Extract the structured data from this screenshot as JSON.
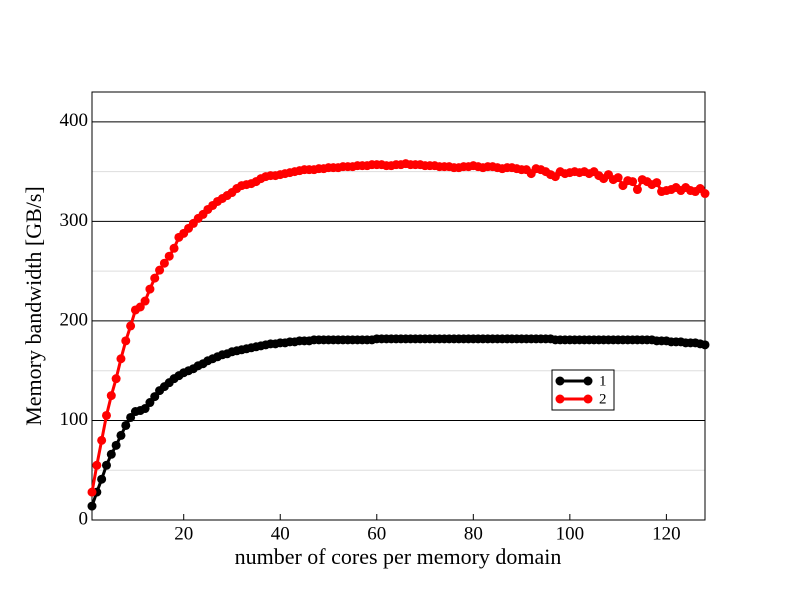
{
  "chart_data": {
    "type": "line",
    "xlabel": "number of cores per memory domain",
    "ylabel": "Memory bandwidth [GB/s]",
    "x": [
      1,
      2,
      3,
      4,
      5,
      6,
      7,
      8,
      9,
      10,
      11,
      12,
      13,
      14,
      15,
      16,
      17,
      18,
      19,
      20,
      21,
      22,
      23,
      24,
      25,
      26,
      27,
      28,
      29,
      30,
      31,
      32,
      33,
      34,
      35,
      36,
      37,
      38,
      39,
      40,
      41,
      42,
      43,
      44,
      45,
      46,
      47,
      48,
      49,
      50,
      51,
      52,
      53,
      54,
      55,
      56,
      57,
      58,
      59,
      60,
      61,
      62,
      63,
      64,
      65,
      66,
      67,
      68,
      69,
      70,
      71,
      72,
      73,
      74,
      75,
      76,
      77,
      78,
      79,
      80,
      81,
      82,
      83,
      84,
      85,
      86,
      87,
      88,
      89,
      90,
      91,
      92,
      93,
      94,
      95,
      96,
      97,
      98,
      99,
      100,
      101,
      102,
      103,
      104,
      105,
      106,
      107,
      108,
      109,
      110,
      111,
      112,
      113,
      114,
      115,
      116,
      117,
      118,
      119,
      120,
      121,
      122,
      123,
      124,
      125,
      126,
      127,
      128
    ],
    "series": [
      {
        "name": "1",
        "color": "#000000",
        "values": [
          14,
          28,
          41,
          55,
          66,
          75,
          85,
          95,
          103,
          109,
          110,
          112,
          118,
          124,
          130,
          134,
          138,
          142,
          145,
          148,
          150,
          152,
          155,
          157,
          160,
          162,
          164,
          166,
          167,
          169,
          170,
          171,
          172,
          173,
          174,
          175,
          176,
          177,
          177,
          178,
          178,
          179,
          179,
          180,
          180,
          180,
          181,
          181,
          181,
          181,
          181,
          181,
          181,
          181,
          181,
          181,
          181,
          181,
          181,
          182,
          182,
          182,
          182,
          182,
          182,
          182,
          182,
          182,
          182,
          182,
          182,
          182,
          182,
          182,
          182,
          182,
          182,
          182,
          182,
          182,
          182,
          182,
          182,
          182,
          182,
          182,
          182,
          182,
          182,
          182,
          182,
          182,
          182,
          182,
          182,
          182,
          181,
          181,
          181,
          181,
          181,
          181,
          181,
          181,
          181,
          181,
          181,
          181,
          181,
          181,
          181,
          181,
          181,
          181,
          181,
          181,
          181,
          180,
          180,
          180,
          179,
          179,
          179,
          178,
          178,
          178,
          177,
          176
        ]
      },
      {
        "name": "2",
        "color": "#ff0000",
        "values": [
          28,
          55,
          80,
          105,
          125,
          142,
          162,
          180,
          195,
          211,
          214,
          220,
          232,
          243,
          251,
          258,
          265,
          273,
          284,
          288,
          293,
          298,
          303,
          307,
          312,
          316,
          320,
          323,
          326,
          329,
          333,
          336,
          337,
          338,
          340,
          343,
          345,
          346,
          346,
          347,
          348,
          349,
          350,
          351,
          352,
          352,
          352,
          353,
          353,
          354,
          354,
          354,
          355,
          355,
          355,
          356,
          356,
          356,
          357,
          357,
          357,
          356,
          356,
          357,
          357,
          358,
          357,
          357,
          357,
          356,
          356,
          356,
          355,
          355,
          355,
          354,
          354,
          355,
          355,
          356,
          355,
          354,
          355,
          355,
          354,
          353,
          354,
          354,
          353,
          352,
          352,
          348,
          353,
          352,
          350,
          347,
          345,
          350,
          348,
          349,
          350,
          349,
          350,
          348,
          350,
          346,
          343,
          347,
          342,
          344,
          336,
          341,
          340,
          332,
          342,
          340,
          337,
          339,
          330,
          331,
          332,
          334,
          331,
          334,
          331,
          330,
          333,
          328
        ]
      }
    ],
    "xlim": [
      1,
      128
    ],
    "ylim": [
      0,
      430
    ],
    "xticks": [
      20,
      40,
      60,
      80,
      100,
      120
    ],
    "yticks": [
      0,
      100,
      200,
      300,
      400
    ],
    "minor_yticks": [
      50,
      150,
      250,
      350
    ],
    "grid": true,
    "legend": "right"
  }
}
